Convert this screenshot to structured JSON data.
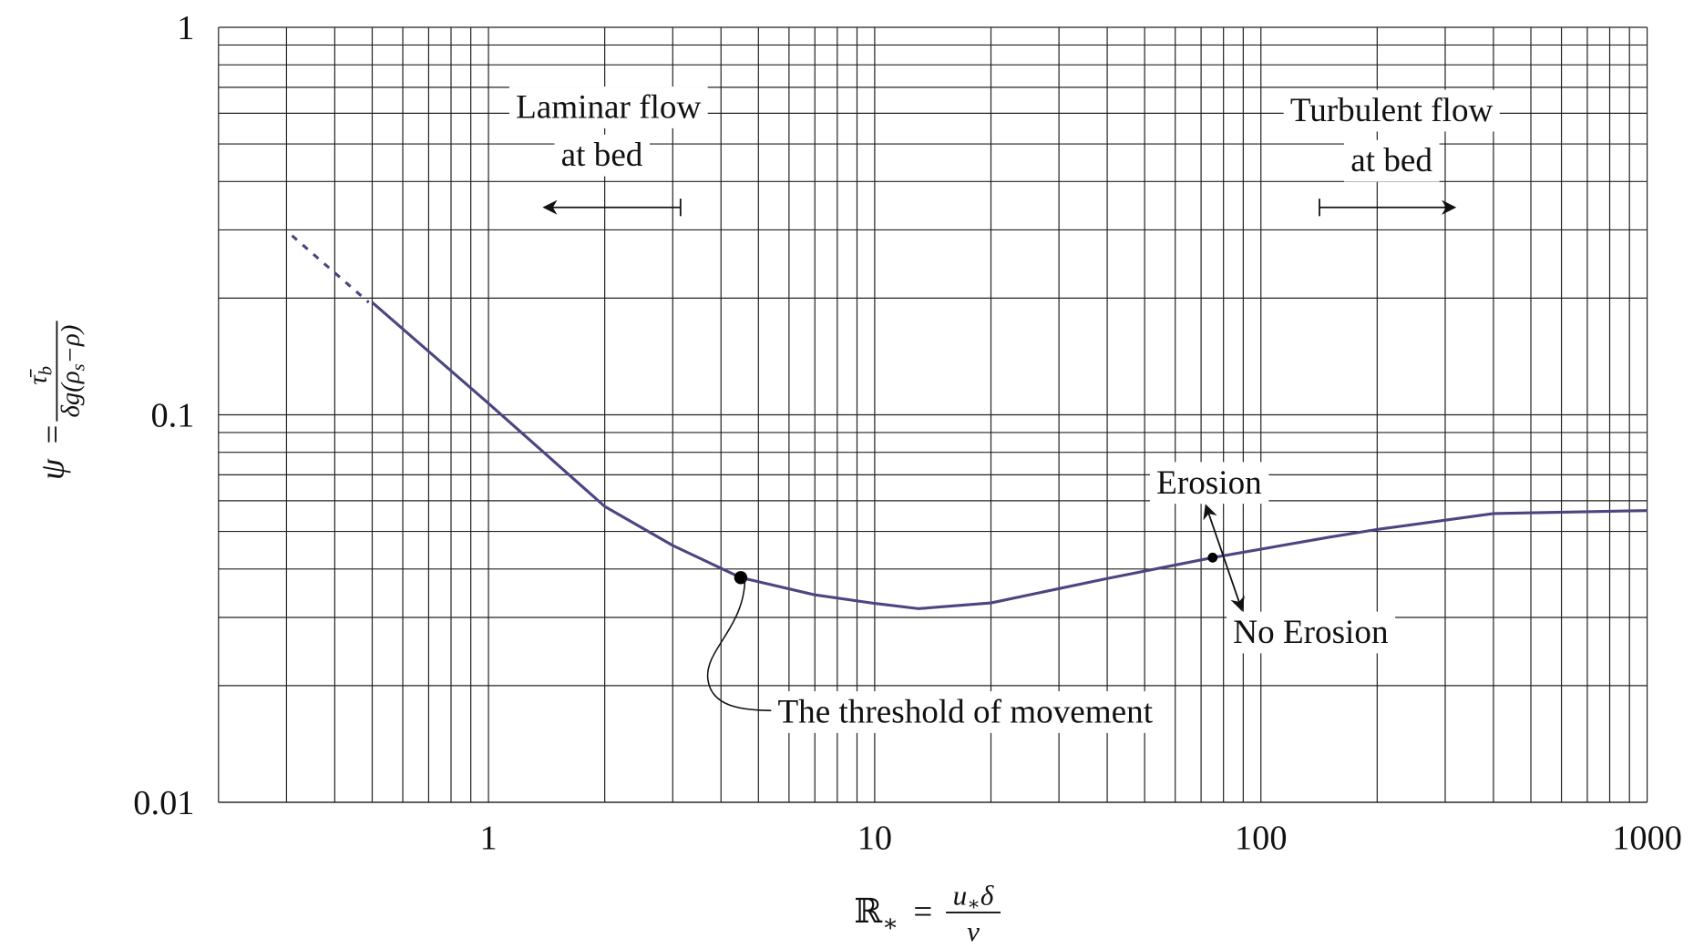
{
  "chart_data": {
    "type": "line",
    "x_scale": "log",
    "y_scale": "log",
    "grid": true,
    "xlim": [
      0.2,
      1000
    ],
    "ylim": [
      0.01,
      1
    ],
    "xticks": [
      1,
      10,
      100,
      1000
    ],
    "yticks": [
      0.01,
      0.1,
      1
    ],
    "x_minor_ticks": [
      0.3,
      0.4,
      0.5,
      0.6,
      0.7,
      0.8,
      0.9,
      2,
      3,
      4,
      5,
      6,
      7,
      8,
      9,
      20,
      30,
      40,
      50,
      60,
      70,
      80,
      90,
      200,
      300,
      400,
      500,
      600,
      700,
      800,
      900
    ],
    "y_minor_ticks": [
      0.02,
      0.03,
      0.04,
      0.05,
      0.06,
      0.07,
      0.08,
      0.09,
      0.2,
      0.3,
      0.4,
      0.5,
      0.6,
      0.7,
      0.8,
      0.9
    ],
    "x_label": {
      "symbol": "ℝ",
      "symbol_sub": "∗",
      "equals": "=",
      "numerator": "u",
      "numerator_sub": "∗",
      "numerator_end": "δ",
      "denominator": "ν"
    },
    "y_label": {
      "symbol": "ψ",
      "equals": "=",
      "numerator": "τ̄",
      "numerator_sub": "b",
      "denominator": "δg(ρ",
      "denominator_sub": "s",
      "denominator_end": "−ρ)"
    },
    "series": [
      {
        "x": [
          0.31,
          0.49
        ],
        "values": [
          0.29,
          0.195
        ],
        "color": "#4b4681",
        "dashed": true
      },
      {
        "x": [
          0.5,
          1,
          2,
          3,
          4.5,
          7,
          10,
          13,
          20,
          40,
          75,
          150,
          200,
          400,
          1000
        ],
        "values": [
          0.195,
          0.107,
          0.058,
          0.046,
          0.038,
          0.0343,
          0.0326,
          0.0316,
          0.0327,
          0.0378,
          0.0428,
          0.0483,
          0.0506,
          0.0556,
          0.0566
        ],
        "color": "#4b4681",
        "dashed": false
      }
    ],
    "points": {
      "x": [
        4.5,
        75
      ],
      "values": [
        0.038,
        0.0428
      ],
      "color": "#000000"
    },
    "annotations": {
      "laminar": [
        "Laminar flow",
        "at bed"
      ],
      "turbulent": [
        "Turbulent flow",
        "at bed"
      ],
      "erosion": "Erosion",
      "no_erosion": "No Erosion",
      "threshold": "The threshold of movement"
    }
  }
}
